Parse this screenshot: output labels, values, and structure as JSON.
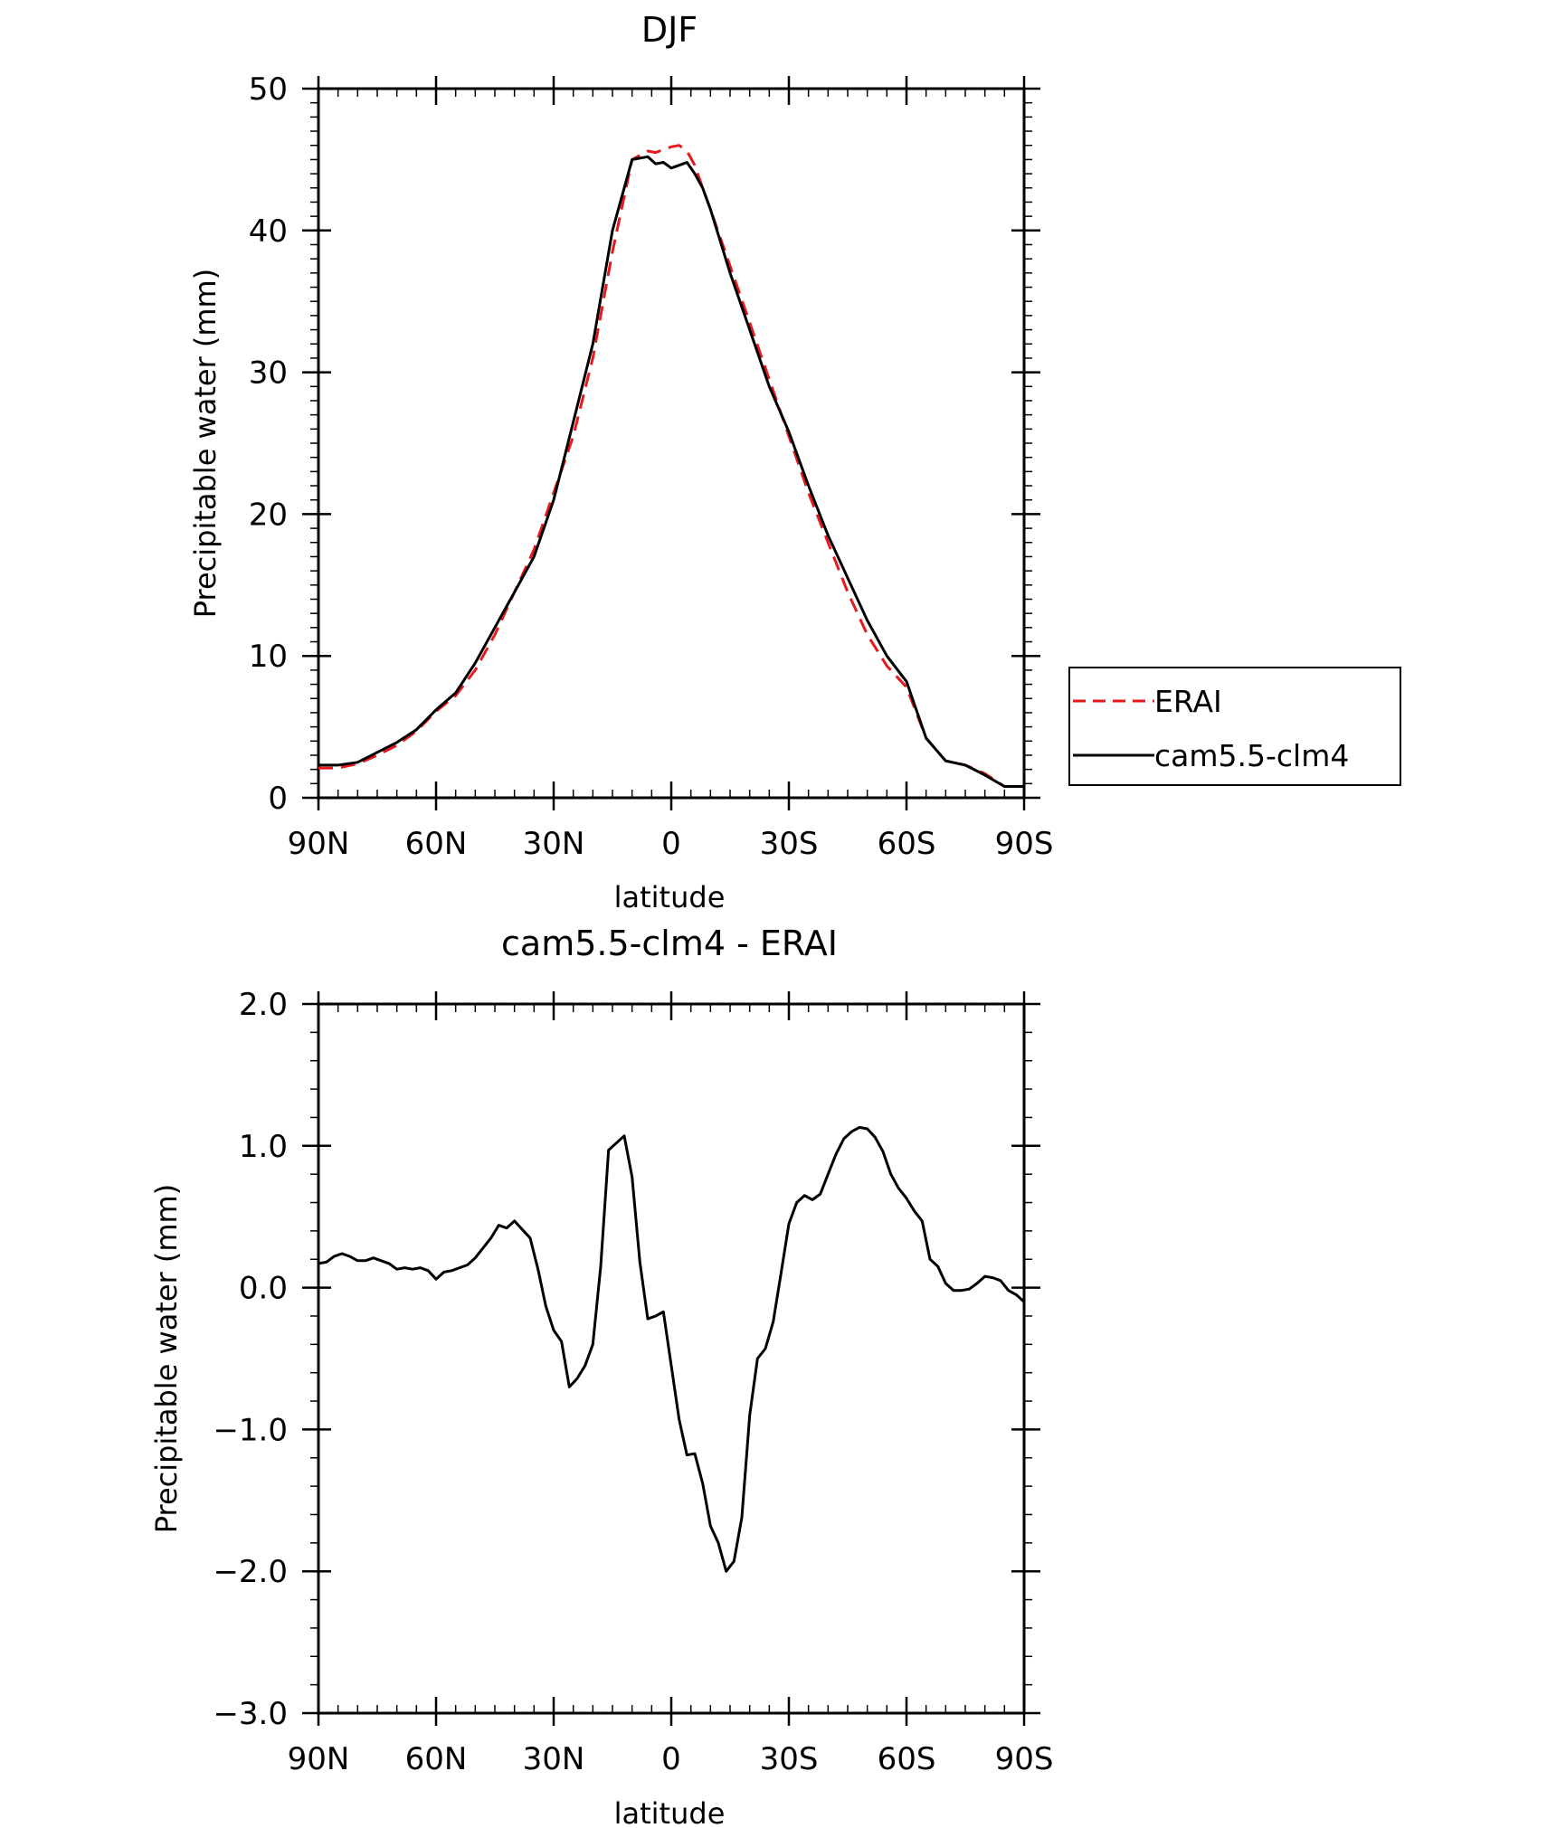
{
  "chart_data": [
    {
      "type": "line",
      "title": "DJF",
      "xlabel": "latitude",
      "ylabel": "Precipitable water (mm)",
      "xlim": [
        90,
        -90
      ],
      "ylim": [
        0,
        50
      ],
      "x_ticks": [
        {
          "value": 90,
          "label": "90N"
        },
        {
          "value": 60,
          "label": "60N"
        },
        {
          "value": 30,
          "label": "30N"
        },
        {
          "value": 0,
          "label": "0"
        },
        {
          "value": -30,
          "label": "30S"
        },
        {
          "value": -60,
          "label": "60S"
        },
        {
          "value": -90,
          "label": "90S"
        }
      ],
      "y_ticks": [
        {
          "value": 0,
          "label": "0"
        },
        {
          "value": 10,
          "label": "10"
        },
        {
          "value": 20,
          "label": "20"
        },
        {
          "value": 30,
          "label": "30"
        },
        {
          "value": 40,
          "label": "40"
        },
        {
          "value": 50,
          "label": "50"
        }
      ],
      "legend_position": "right",
      "series": [
        {
          "name": "ERAI",
          "color": "#e8191c",
          "style": "dashed",
          "x": [
            90,
            85,
            80,
            75,
            70,
            65,
            60,
            55,
            50,
            45,
            40,
            35,
            30,
            25,
            20,
            15,
            10,
            6,
            4,
            2,
            0,
            -2,
            -4,
            -6,
            -8,
            -10,
            -15,
            -20,
            -25,
            -30,
            -35,
            -40,
            -45,
            -50,
            -55,
            -60,
            -65,
            -70,
            -75,
            -80,
            -85,
            -90
          ],
          "y": [
            2.1,
            2.1,
            2.4,
            3.0,
            3.7,
            4.7,
            6.1,
            7.2,
            9.0,
            11.5,
            14.5,
            17.5,
            21.5,
            25.5,
            31.0,
            38.5,
            45.0,
            45.6,
            45.5,
            45.7,
            45.9,
            46.0,
            45.6,
            44.6,
            43.0,
            41.5,
            37.5,
            33.5,
            29.5,
            25.5,
            21.5,
            18.0,
            14.5,
            11.5,
            9.3,
            7.8,
            4.2,
            2.6,
            2.3,
            1.7,
            0.8,
            0.8
          ]
        },
        {
          "name": "cam5.5-clm4",
          "color": "#000000",
          "style": "solid",
          "x": [
            90,
            85,
            80,
            75,
            70,
            65,
            60,
            55,
            50,
            45,
            40,
            35,
            30,
            25,
            20,
            15,
            10,
            6,
            4,
            2,
            0,
            -2,
            -4,
            -6,
            -8,
            -10,
            -15,
            -20,
            -25,
            -30,
            -35,
            -40,
            -45,
            -50,
            -55,
            -60,
            -65,
            -70,
            -75,
            -80,
            -85,
            -90
          ],
          "y": [
            2.3,
            2.3,
            2.5,
            3.2,
            3.9,
            4.8,
            6.2,
            7.4,
            9.5,
            12.0,
            14.5,
            17.0,
            21.0,
            26.5,
            32.0,
            40.0,
            45.0,
            45.2,
            44.7,
            44.8,
            44.4,
            44.6,
            44.8,
            44.0,
            43.0,
            41.5,
            37.0,
            33.0,
            29.0,
            25.8,
            22.0,
            18.5,
            15.5,
            12.5,
            10.0,
            8.2,
            4.2,
            2.6,
            2.3,
            1.6,
            0.8,
            0.8
          ]
        }
      ]
    },
    {
      "type": "line",
      "title": "cam5.5-clm4 - ERAI",
      "xlabel": "latitude",
      "ylabel": "Precipitable water (mm)",
      "xlim": [
        90,
        -90
      ],
      "ylim": [
        -3,
        2
      ],
      "x_ticks": [
        {
          "value": 90,
          "label": "90N"
        },
        {
          "value": 60,
          "label": "60N"
        },
        {
          "value": 30,
          "label": "30N"
        },
        {
          "value": 0,
          "label": "0"
        },
        {
          "value": -30,
          "label": "30S"
        },
        {
          "value": -60,
          "label": "60S"
        },
        {
          "value": -90,
          "label": "90S"
        }
      ],
      "y_ticks": [
        {
          "value": -3,
          "label": "−3.0"
        },
        {
          "value": -2,
          "label": "−2.0"
        },
        {
          "value": -1,
          "label": "−1.0"
        },
        {
          "value": 0,
          "label": "0.0"
        },
        {
          "value": 1,
          "label": "1.0"
        },
        {
          "value": 2,
          "label": "2.0"
        }
      ],
      "series": [
        {
          "color": "#000000",
          "style": "solid",
          "x": [
            90,
            88,
            86,
            84,
            82,
            80,
            78,
            76,
            74,
            72,
            70,
            68,
            66,
            64,
            62,
            60,
            58,
            56,
            54,
            52,
            50,
            48,
            46,
            44,
            42,
            40,
            38,
            36,
            34,
            32,
            30,
            28,
            26,
            24,
            22,
            20,
            18,
            16,
            14,
            12,
            10,
            8,
            6,
            4,
            2,
            0,
            -2,
            -4,
            -6,
            -8,
            -10,
            -12,
            -14,
            -16,
            -18,
            -20,
            -22,
            -24,
            -26,
            -28,
            -30,
            -32,
            -34,
            -36,
            -38,
            -40,
            -42,
            -44,
            -46,
            -48,
            -50,
            -52,
            -54,
            -56,
            -58,
            -60,
            -62,
            -64,
            -66,
            -68,
            -70,
            -72,
            -74,
            -76,
            -78,
            -80,
            -82,
            -84,
            -86,
            -88,
            -90
          ],
          "y": [
            0.17,
            0.18,
            0.22,
            0.24,
            0.22,
            0.19,
            0.19,
            0.21,
            0.19,
            0.17,
            0.13,
            0.14,
            0.13,
            0.14,
            0.12,
            0.06,
            0.11,
            0.12,
            0.14,
            0.16,
            0.21,
            0.28,
            0.35,
            0.44,
            0.42,
            0.47,
            0.41,
            0.35,
            0.13,
            -0.13,
            -0.3,
            -0.38,
            -0.7,
            -0.64,
            -0.55,
            -0.4,
            0.15,
            0.97,
            1.02,
            1.07,
            0.78,
            0.18,
            -0.22,
            -0.2,
            -0.17,
            -0.55,
            -0.93,
            -1.18,
            -1.17,
            -1.38,
            -1.68,
            -1.8,
            -2.0,
            -1.93,
            -1.62,
            -0.9,
            -0.5,
            -0.43,
            -0.24,
            0.1,
            0.45,
            0.6,
            0.65,
            0.62,
            0.66,
            0.8,
            0.94,
            1.05,
            1.1,
            1.13,
            1.12,
            1.06,
            0.96,
            0.8,
            0.7,
            0.63,
            0.54,
            0.47,
            0.2,
            0.15,
            0.03,
            -0.02,
            -0.02,
            -0.01,
            0.03,
            0.08,
            0.07,
            0.05,
            -0.02,
            -0.05,
            -0.1
          ]
        }
      ]
    }
  ],
  "legend": {
    "items": [
      {
        "label": "ERAI"
      },
      {
        "label": "cam5.5-clm4"
      }
    ]
  }
}
